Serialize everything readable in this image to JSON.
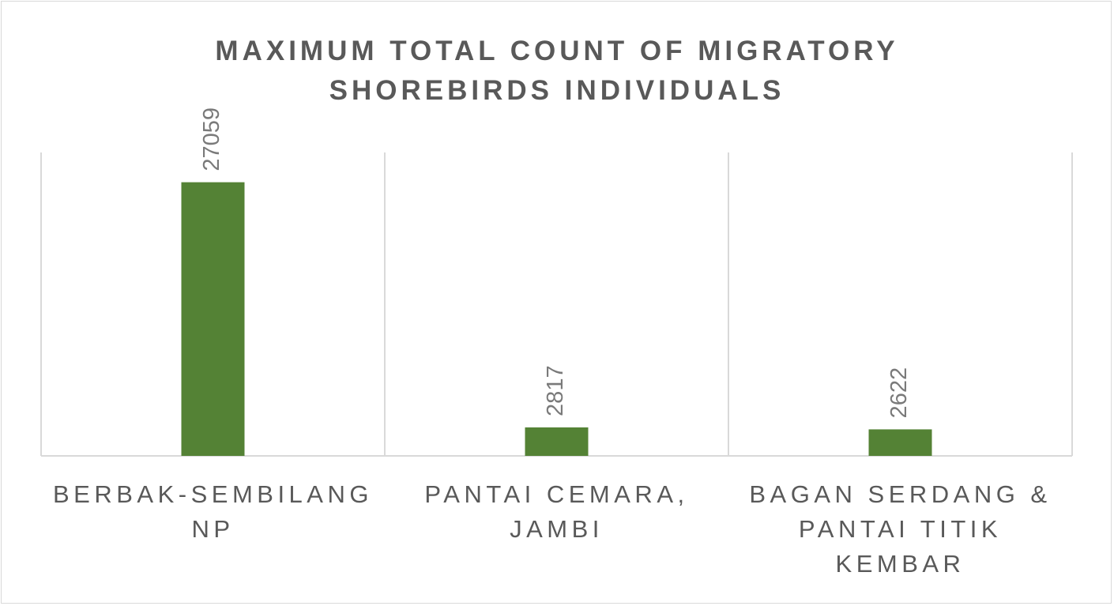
{
  "chart_data": {
    "type": "bar",
    "title": "MAXIMUM TOTAL COUNT OF MIGRATORY SHOREBIRDS INDIVIDUALS",
    "categories": [
      "BERBAK-SEMBILANG NP",
      "PANTAI CEMARA, JAMBI",
      "BAGAN SERDANG & PANTAI TITIK KEMBAR"
    ],
    "values": [
      27059,
      2817,
      2622
    ],
    "color": "#548235",
    "ylim": [
      0,
      30000
    ]
  }
}
